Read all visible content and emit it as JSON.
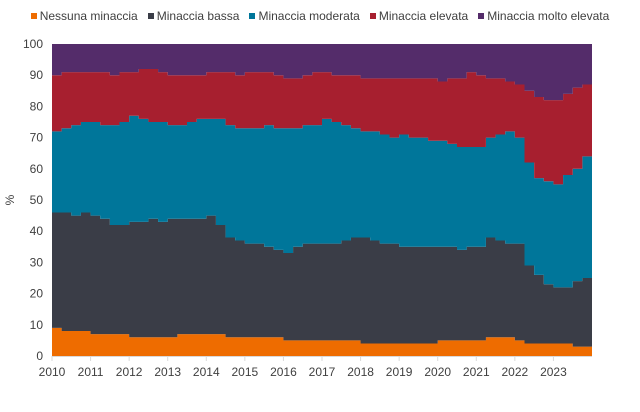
{
  "chart_data": {
    "type": "area",
    "stacked": true,
    "title": "",
    "xlabel": "",
    "ylabel": "%",
    "ylim": [
      0,
      100
    ],
    "xlim": [
      2010,
      2024
    ],
    "yticks": [
      0,
      10,
      20,
      30,
      40,
      50,
      60,
      70,
      80,
      90,
      100
    ],
    "xticks": [
      2010,
      2011,
      2012,
      2013,
      2014,
      2015,
      2016,
      2017,
      2018,
      2019,
      2020,
      2021,
      2022,
      2023
    ],
    "legend_position": "top",
    "grid": false,
    "x_step": 0.25,
    "x_start": 2010,
    "series": [
      {
        "name": "Nessuna minaccia",
        "color": "#ee6c00",
        "values": [
          9,
          8,
          8,
          8,
          7,
          7,
          7,
          7,
          6,
          6,
          6,
          6,
          6,
          7,
          7,
          7,
          7,
          7,
          6,
          6,
          6,
          6,
          6,
          6,
          5,
          5,
          5,
          5,
          5,
          5,
          5,
          5,
          4,
          4,
          4,
          4,
          4,
          4,
          4,
          4,
          5,
          5,
          5,
          5,
          5,
          6,
          6,
          6,
          5,
          4,
          4,
          4,
          4,
          4,
          3,
          3
        ]
      },
      {
        "name": "Minaccia bassa",
        "color": "#3a3d47",
        "values": [
          37,
          38,
          37,
          38,
          38,
          37,
          35,
          35,
          37,
          37,
          38,
          37,
          38,
          37,
          37,
          37,
          38,
          35,
          32,
          31,
          30,
          30,
          29,
          28,
          28,
          30,
          31,
          31,
          31,
          31,
          32,
          33,
          34,
          33,
          32,
          32,
          31,
          31,
          31,
          31,
          30,
          30,
          29,
          30,
          30,
          32,
          31,
          30,
          31,
          25,
          22,
          19,
          18,
          18,
          21,
          22
        ]
      },
      {
        "name": "Minaccia moderata",
        "color": "#00769a",
        "values": [
          26,
          27,
          29,
          29,
          30,
          30,
          32,
          33,
          34,
          33,
          31,
          32,
          30,
          30,
          31,
          32,
          31,
          34,
          36,
          36,
          37,
          37,
          39,
          39,
          40,
          38,
          38,
          38,
          40,
          39,
          37,
          35,
          34,
          35,
          35,
          34,
          36,
          35,
          35,
          34,
          34,
          33,
          33,
          32,
          32,
          32,
          34,
          36,
          34,
          33,
          31,
          33,
          33,
          36,
          36,
          39
        ]
      },
      {
        "name": "Minaccia elevata",
        "color": "#a71f2f",
        "values": [
          18,
          18,
          17,
          16,
          16,
          17,
          16,
          16,
          14,
          16,
          17,
          16,
          16,
          16,
          15,
          14,
          15,
          15,
          17,
          17,
          18,
          18,
          17,
          17,
          16,
          16,
          16,
          17,
          15,
          15,
          16,
          17,
          17,
          17,
          18,
          19,
          18,
          19,
          19,
          20,
          19,
          21,
          22,
          24,
          23,
          19,
          18,
          16,
          17,
          23,
          26,
          26,
          27,
          26,
          26,
          23
        ]
      },
      {
        "name": "Minaccia molto elevata",
        "color": "#542c6a",
        "values": [
          10,
          9,
          9,
          9,
          9,
          9,
          10,
          9,
          9,
          8,
          8,
          9,
          10,
          10,
          10,
          10,
          9,
          9,
          9,
          10,
          9,
          9,
          9,
          10,
          11,
          11,
          10,
          9,
          9,
          10,
          10,
          10,
          11,
          11,
          11,
          11,
          11,
          11,
          11,
          11,
          12,
          11,
          11,
          9,
          10,
          11,
          11,
          12,
          13,
          15,
          17,
          18,
          18,
          16,
          14,
          13
        ]
      }
    ]
  }
}
